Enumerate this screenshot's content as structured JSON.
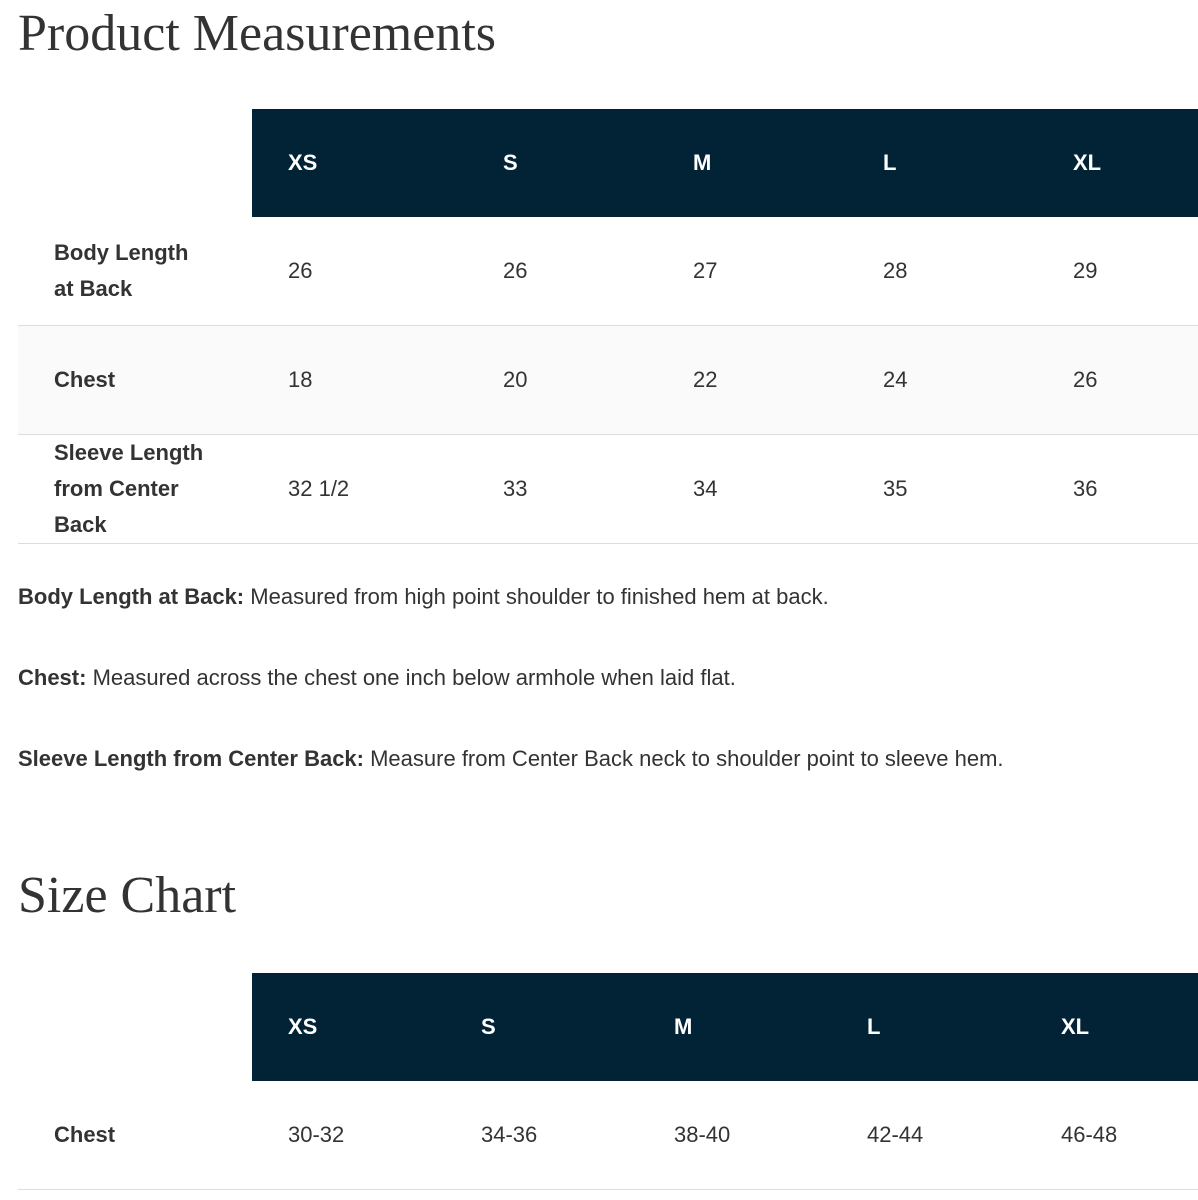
{
  "measurements": {
    "title": "Product Measurements",
    "table": {
      "header": [
        "XS",
        "S",
        "M",
        "L",
        "XL"
      ],
      "rows": [
        {
          "label": "Body Length at Back",
          "cells": [
            "26",
            "26",
            "27",
            "28",
            "29"
          ]
        },
        {
          "label": "Chest",
          "cells": [
            "18",
            "20",
            "22",
            "24",
            "26"
          ]
        },
        {
          "label": "Sleeve Length from Center Back",
          "cells": [
            "32 1/2",
            "33",
            "34",
            "35",
            "36"
          ]
        }
      ]
    },
    "notes": [
      {
        "label": "Body Length at Back:",
        "text": "Measured from high point shoulder to finished hem at back."
      },
      {
        "label": "Chest:",
        "text": "Measured across the chest one inch below armhole when laid flat."
      },
      {
        "label": "Sleeve Length from Center Back:",
        "text": "Measure from Center Back neck to shoulder point to sleeve hem."
      }
    ]
  },
  "size_chart": {
    "title": "Size Chart",
    "table": {
      "header": [
        "XS",
        "S",
        "M",
        "L",
        "XL"
      ],
      "rows": [
        {
          "label": "Chest",
          "cells": [
            "30-32",
            "34-36",
            "38-40",
            "42-44",
            "46-48"
          ]
        }
      ]
    }
  }
}
